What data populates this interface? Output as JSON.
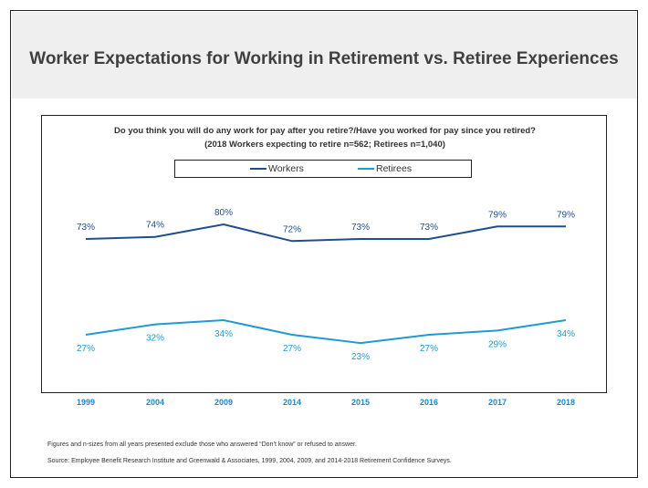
{
  "title": "Worker Expectations for Working in Retirement vs. Retiree Experiences",
  "question_line1": "Do you think you will do any work for pay after you retire?/Have you worked for pay since you retired?",
  "question_line2": "(2018 Workers expecting to retire n=562; Retirees n=1,040)",
  "footnote1": "Figures and n-sizes from all years presented exclude those who answered “Don’t know” or refused to answer.",
  "footnote2": "Source:  Employee Benefit Research Institute and Greenwald & Associates, 1999, 2004, 2009, and 2014-2018 Retirement Confidence Surveys.",
  "colors": {
    "workers": "#1f4e8c",
    "retirees": "#1f9bd0",
    "tick": "#1f86c7"
  },
  "chart_data": {
    "type": "line",
    "categories": [
      "1999",
      "2004",
      "2009",
      "2014",
      "2015",
      "2016",
      "2017",
      "2018"
    ],
    "series": [
      {
        "name": "Workers",
        "values": [
          73,
          74,
          80,
          72,
          73,
          73,
          79,
          79
        ],
        "labels": [
          "73%",
          "74%",
          "80%",
          "72%",
          "73%",
          "73%",
          "79%",
          "79%"
        ]
      },
      {
        "name": "Retirees",
        "values": [
          27,
          32,
          34,
          27,
          23,
          27,
          29,
          34
        ],
        "labels": [
          "27%",
          "32%",
          "34%",
          "27%",
          "23%",
          "27%",
          "29%",
          "34%"
        ]
      }
    ],
    "legend": "top-center",
    "grid": false
  }
}
